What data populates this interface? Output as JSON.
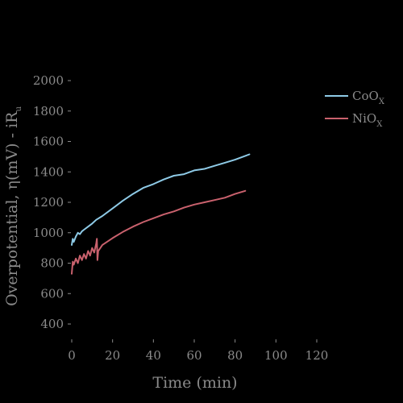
{
  "chart_data": {
    "type": "line",
    "xlabel": "Time (min)",
    "ylabel": "Overpotential, η(mV) - iR",
    "ylabel_sub": "u",
    "xlim": [
      0,
      120
    ],
    "ylim": [
      300,
      2050
    ],
    "xticks": [
      0,
      20,
      40,
      60,
      80,
      100,
      120
    ],
    "yticks": [
      400,
      600,
      800,
      1000,
      1200,
      1400,
      1600,
      1800,
      2000
    ],
    "grid": false,
    "legend_position": "top-right",
    "series": [
      {
        "name": "CoO",
        "name_sub": "X",
        "color": "#8ecae6",
        "x": [
          0,
          0.5,
          1,
          2,
          3,
          4,
          5,
          6,
          8,
          10,
          12,
          15,
          20,
          25,
          30,
          35,
          40,
          45,
          50,
          55,
          60,
          65,
          70,
          75,
          80,
          85,
          87
        ],
        "y": [
          920,
          960,
          940,
          975,
          1000,
          990,
          1010,
          1020,
          1040,
          1060,
          1085,
          1110,
          1160,
          1210,
          1255,
          1295,
          1320,
          1350,
          1375,
          1385,
          1410,
          1420,
          1440,
          1460,
          1480,
          1505,
          1515
        ]
      },
      {
        "name": "NiO",
        "name_sub": "X",
        "color": "#c9616d",
        "x": [
          0,
          0.5,
          1,
          2,
          3,
          4,
          5,
          6,
          7,
          8,
          9,
          10,
          11,
          12,
          12.3,
          12.6,
          13,
          15,
          20,
          25,
          30,
          35,
          40,
          45,
          50,
          55,
          60,
          65,
          70,
          75,
          80,
          85
        ],
        "y": [
          730,
          810,
          790,
          830,
          800,
          850,
          820,
          860,
          830,
          880,
          850,
          900,
          870,
          930,
          960,
          820,
          880,
          920,
          965,
          1005,
          1040,
          1070,
          1095,
          1120,
          1140,
          1165,
          1185,
          1200,
          1215,
          1230,
          1255,
          1275
        ]
      }
    ]
  }
}
